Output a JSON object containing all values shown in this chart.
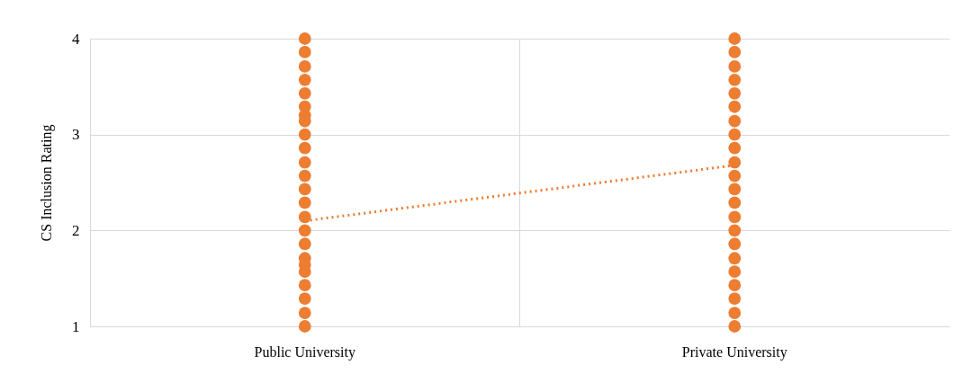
{
  "chart_data": {
    "type": "scatter",
    "ylabel": "CS Inclusion Rating",
    "categories": [
      "Public University",
      "Private University"
    ],
    "ylim": [
      1,
      4
    ],
    "yticks": [
      1,
      2,
      3,
      4
    ],
    "grid": true,
    "series": [
      {
        "marker": "circle",
        "color": "#ed7d31",
        "x": [
          "Public University",
          "Public University",
          "Public University",
          "Public University",
          "Public University",
          "Public University",
          "Public University",
          "Public University",
          "Public University",
          "Public University",
          "Public University",
          "Public University",
          "Public University",
          "Public University",
          "Public University",
          "Public University",
          "Public University",
          "Public University",
          "Public University",
          "Public University",
          "Public University",
          "Public University",
          "Public University",
          "Public University"
        ],
        "values": [
          4,
          3.86,
          3.71,
          3.57,
          3.43,
          3.29,
          3.2,
          3.14,
          3,
          2.86,
          2.71,
          2.57,
          2.43,
          2.29,
          2.14,
          2,
          1.86,
          1.71,
          1.64,
          1.57,
          1.43,
          1.29,
          1.14,
          1
        ]
      },
      {
        "marker": "circle",
        "color": "#ed7d31",
        "x": [
          "Private University",
          "Private University",
          "Private University",
          "Private University",
          "Private University",
          "Private University",
          "Private University",
          "Private University",
          "Private University",
          "Private University",
          "Private University",
          "Private University",
          "Private University",
          "Private University",
          "Private University",
          "Private University",
          "Private University",
          "Private University",
          "Private University",
          "Private University",
          "Private University",
          "Private University"
        ],
        "values": [
          4,
          3.86,
          3.71,
          3.57,
          3.43,
          3.29,
          3.14,
          3,
          2.86,
          2.71,
          2.57,
          2.43,
          2.29,
          2.14,
          2,
          1.86,
          1.71,
          1.57,
          1.43,
          1.29,
          1.14,
          1
        ]
      },
      {
        "type": "line",
        "color": "#ed7d31",
        "line_style": "dotted",
        "x": [
          "Public University",
          "Private University"
        ],
        "values": [
          2.1,
          2.68
        ]
      }
    ]
  }
}
